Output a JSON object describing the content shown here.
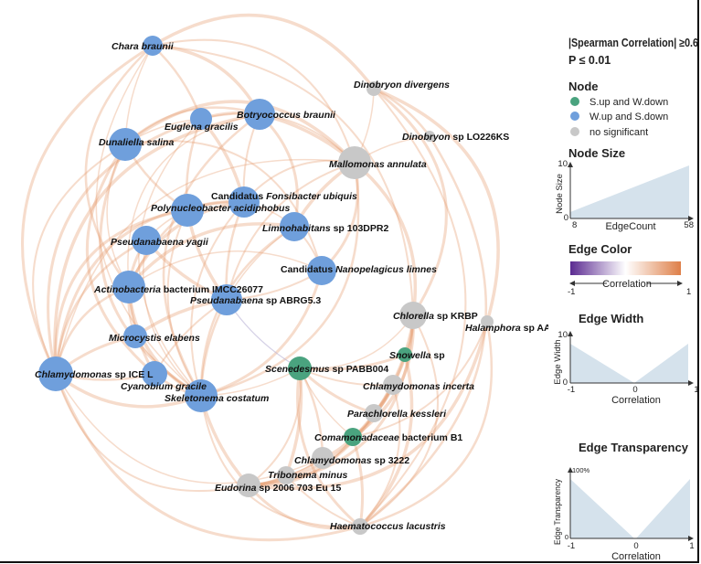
{
  "legend": {
    "threshold": "|Spearman Correlation| ≥0.6",
    "pvalue": "P ≤ 0.01",
    "node_title": "Node",
    "node_items": [
      {
        "label": "S.up and W.down",
        "color": "#4aa37f"
      },
      {
        "label": "W.up and S.down",
        "color": "#6f9fdc"
      },
      {
        "label": "no significant",
        "color": "#c8c8c8"
      }
    ],
    "node_size": {
      "title": "Node Size",
      "ylabel": "Node Size",
      "xlabel": "EdgeCount",
      "y_min": "0",
      "y_max": "10",
      "x_min": "8",
      "x_max": "58"
    },
    "edge_color": {
      "title": "Edge Color",
      "label": "Correlation",
      "min": "-1",
      "max": "1",
      "neg_color": "#5b2a91",
      "mid_color": "#ffffff",
      "pos_color": "#de7f48"
    },
    "edge_width": {
      "title": "Edge Width",
      "ylabel": "Edge Width",
      "xlabel": "Correlation",
      "y_min": "0",
      "y_max": "10",
      "x_min": "-1",
      "x_mid": "0",
      "x_max": "1"
    },
    "edge_transparency": {
      "title": "Edge Transparency",
      "ylabel": "Edge Transparency",
      "xlabel": "Correlation",
      "y_min": "0",
      "y_max": "100%",
      "x_min": "-1",
      "x_mid": "0",
      "x_max": "1"
    }
  },
  "nodes": [
    {
      "id": "chara",
      "group": "blue",
      "label": [
        {
          "t": "Chara braunii",
          "i": true
        }
      ]
    },
    {
      "id": "euglena",
      "group": "blue",
      "label": [
        {
          "t": "Euglena gracilis",
          "i": true
        }
      ]
    },
    {
      "id": "botryo",
      "group": "blue",
      "label": [
        {
          "t": "Botryococcus braunii",
          "i": true
        }
      ]
    },
    {
      "id": "dunaliella",
      "group": "blue",
      "label": [
        {
          "t": "Dunaliella salina",
          "i": true
        }
      ]
    },
    {
      "id": "dinodiv",
      "group": "gray",
      "label": [
        {
          "t": "Dinobryon divergens",
          "i": true
        }
      ]
    },
    {
      "id": "dinolo",
      "group": "gray",
      "label": [
        {
          "t": "Dinobryon",
          "i": true
        },
        {
          "t": " sp LO226KS",
          "i": false
        }
      ]
    },
    {
      "id": "mallomonas",
      "group": "gray",
      "label": [
        {
          "t": "Mallomonas annulata",
          "i": true
        }
      ]
    },
    {
      "id": "fonsibacter",
      "group": "blue",
      "label": [
        {
          "t": "Candidatus ",
          "i": false
        },
        {
          "t": "Fonsibacter ubiquis",
          "i": true
        }
      ]
    },
    {
      "id": "polynucleo",
      "group": "blue",
      "label": [
        {
          "t": "Polynucleobacter acidiphobus",
          "i": true
        }
      ]
    },
    {
      "id": "limno",
      "group": "blue",
      "label": [
        {
          "t": "Limnohabitans",
          "i": true
        },
        {
          "t": " sp 103DPR2",
          "i": false
        }
      ]
    },
    {
      "id": "pyagii",
      "group": "blue",
      "label": [
        {
          "t": "Pseudanabaena yagii",
          "i": true
        }
      ]
    },
    {
      "id": "nanopel",
      "group": "blue",
      "label": [
        {
          "t": "Candidatus ",
          "i": false
        },
        {
          "t": "Nanopelagicus limnes",
          "i": true
        }
      ]
    },
    {
      "id": "actino",
      "group": "blue",
      "label": [
        {
          "t": "Actinobacteria",
          "i": true
        },
        {
          "t": " bacterium IMCC26077",
          "i": false
        }
      ]
    },
    {
      "id": "pabrg",
      "group": "blue",
      "label": [
        {
          "t": "Pseudanabaena",
          "i": true
        },
        {
          "t": " sp ABRG5.3",
          "i": false
        }
      ]
    },
    {
      "id": "chlorella",
      "group": "gray",
      "label": [
        {
          "t": "Chlorella",
          "i": true
        },
        {
          "t": " sp KRBP",
          "i": false
        }
      ]
    },
    {
      "id": "halamphora",
      "group": "gray",
      "label": [
        {
          "t": "Halamphora",
          "i": true
        },
        {
          "t": " sp AAB",
          "i": false
        }
      ]
    },
    {
      "id": "microcystis",
      "group": "blue",
      "label": [
        {
          "t": "Microcystis elabens",
          "i": true
        }
      ]
    },
    {
      "id": "snowella",
      "group": "green",
      "label": [
        {
          "t": "Snowella",
          "i": true
        },
        {
          "t": " sp",
          "i": false
        }
      ]
    },
    {
      "id": "scenedesmus",
      "group": "green",
      "label": [
        {
          "t": "Scenedesmus",
          "i": true
        },
        {
          "t": " sp PABB004",
          "i": false
        }
      ]
    },
    {
      "id": "chlamice",
      "group": "blue",
      "label": [
        {
          "t": "Chlamydomonas",
          "i": true
        },
        {
          "t": " sp ICE L",
          "i": false
        }
      ]
    },
    {
      "id": "cyanobium",
      "group": "blue",
      "label": [
        {
          "t": "Cyanobium gracile",
          "i": true
        }
      ]
    },
    {
      "id": "chlaminc",
      "group": "gray",
      "label": [
        {
          "t": "Chlamydomonas incerta",
          "i": true
        }
      ]
    },
    {
      "id": "skeleto",
      "group": "blue",
      "label": [
        {
          "t": "Skeletonema costatum",
          "i": true
        }
      ]
    },
    {
      "id": "parachlo",
      "group": "gray",
      "label": [
        {
          "t": "Parachlorella kessleri",
          "i": true
        }
      ]
    },
    {
      "id": "comamo",
      "group": "green",
      "label": [
        {
          "t": "Comamonadaceae",
          "i": true
        },
        {
          "t": " bacterium B1",
          "i": false
        }
      ]
    },
    {
      "id": "chlam3222",
      "group": "gray",
      "label": [
        {
          "t": "Chlamydomonas",
          "i": true
        },
        {
          "t": " sp 3222",
          "i": false
        }
      ]
    },
    {
      "id": "tribonema",
      "group": "gray",
      "label": [
        {
          "t": "Tribonema minus",
          "i": true
        }
      ]
    },
    {
      "id": "eudorina",
      "group": "gray",
      "label": [
        {
          "t": "Eudorina",
          "i": true
        },
        {
          "t": " sp 2006 703 Eu 15",
          "i": false
        }
      ]
    },
    {
      "id": "haemato",
      "group": "gray",
      "label": [
        {
          "t": "Haematococcus lacustris",
          "i": true
        }
      ]
    }
  ],
  "edges": [
    [
      "chara",
      "dunaliella",
      1
    ],
    [
      "chara",
      "euglena",
      1
    ],
    [
      "chara",
      "botryo",
      1
    ],
    [
      "chara",
      "mallomonas",
      1
    ],
    [
      "chara",
      "chlamice",
      1
    ],
    [
      "chara",
      "skeleto",
      1
    ],
    [
      "chara",
      "actino",
      1
    ],
    [
      "chara",
      "dinodiv",
      1
    ],
    [
      "chara",
      "chlorella",
      1
    ],
    [
      "euglena",
      "botryo",
      1
    ],
    [
      "euglena",
      "dunaliella",
      1
    ],
    [
      "euglena",
      "polynucleo",
      1
    ],
    [
      "euglena",
      "fonsibacter",
      1
    ],
    [
      "euglena",
      "mallomonas",
      1
    ],
    [
      "euglena",
      "chlamice",
      1
    ],
    [
      "euglena",
      "skeleto",
      1
    ],
    [
      "botryo",
      "dunaliella",
      1
    ],
    [
      "botryo",
      "mallomonas",
      1
    ],
    [
      "botryo",
      "fonsibacter",
      1
    ],
    [
      "botryo",
      "limno",
      1
    ],
    [
      "botryo",
      "actino",
      1
    ],
    [
      "botryo",
      "skeleto",
      1
    ],
    [
      "botryo",
      "chlamice",
      1
    ],
    [
      "dunaliella",
      "chlamice",
      1
    ],
    [
      "dunaliella",
      "skeleto",
      1
    ],
    [
      "dunaliella",
      "actino",
      1
    ],
    [
      "dunaliella",
      "polynucleo",
      1
    ],
    [
      "dunaliella",
      "mallomonas",
      1
    ],
    [
      "dunaliella",
      "nanopel",
      1
    ],
    [
      "dunaliella",
      "cyanobium",
      1
    ],
    [
      "dinodiv",
      "mallomonas",
      1
    ],
    [
      "dinodiv",
      "dinolo",
      1
    ],
    [
      "dinodiv",
      "halamphora",
      1
    ],
    [
      "dinodiv",
      "haemato",
      1
    ],
    [
      "dinodiv",
      "chlorella",
      1
    ],
    [
      "dinolo",
      "mallomonas",
      1
    ],
    [
      "dinolo",
      "haemato",
      1
    ],
    [
      "mallomonas",
      "limno",
      1
    ],
    [
      "mallomonas",
      "fonsibacter",
      1
    ],
    [
      "mallomonas",
      "nanopel",
      1
    ],
    [
      "mallomonas",
      "chlamice",
      1
    ],
    [
      "mallomonas",
      "skeleto",
      1
    ],
    [
      "mallomonas",
      "chlorella",
      1
    ],
    [
      "mallomonas",
      "pabrg",
      1
    ],
    [
      "fonsibacter",
      "polynucleo",
      1
    ],
    [
      "fonsibacter",
      "limno",
      1
    ],
    [
      "fonsibacter",
      "pabrg",
      1
    ],
    [
      "fonsibacter",
      "actino",
      1
    ],
    [
      "fonsibacter",
      "skeleto",
      1
    ],
    [
      "fonsibacter",
      "chlamice",
      1
    ],
    [
      "polynucleo",
      "pyagii",
      1
    ],
    [
      "polynucleo",
      "actino",
      1
    ],
    [
      "polynucleo",
      "pabrg",
      1
    ],
    [
      "polynucleo",
      "skeleto",
      1
    ],
    [
      "polynucleo",
      "chlamice",
      1
    ],
    [
      "limno",
      "pabrg",
      1
    ],
    [
      "limno",
      "skeleto",
      1
    ],
    [
      "limno",
      "actino",
      1
    ],
    [
      "limno",
      "nanopel",
      1
    ],
    [
      "pyagii",
      "actino",
      1
    ],
    [
      "pyagii",
      "skeleto",
      1
    ],
    [
      "pyagii",
      "chlamice",
      1
    ],
    [
      "pyagii",
      "pabrg",
      1
    ],
    [
      "nanopel",
      "pabrg",
      1
    ],
    [
      "nanopel",
      "skeleto",
      1
    ],
    [
      "nanopel",
      "actino",
      1
    ],
    [
      "actino",
      "chlamice",
      1
    ],
    [
      "actino",
      "skeleto",
      1
    ],
    [
      "actino",
      "microcystis",
      1
    ],
    [
      "actino",
      "cyanobium",
      1
    ],
    [
      "pabrg",
      "scenedesmus",
      -1
    ],
    [
      "pabrg",
      "skeleto",
      1
    ],
    [
      "pabrg",
      "microcystis",
      1
    ],
    [
      "pabrg",
      "cyanobium",
      1
    ],
    [
      "microcystis",
      "chlamice",
      1
    ],
    [
      "microcystis",
      "skeleto",
      1
    ],
    [
      "chlamice",
      "cyanobium",
      1
    ],
    [
      "chlamice",
      "skeleto",
      1
    ],
    [
      "chlamice",
      "eudorina",
      1
    ],
    [
      "chlamice",
      "haemato",
      1
    ],
    [
      "chlamice",
      "chlam3222",
      1
    ],
    [
      "cyanobium",
      "skeleto",
      1
    ],
    [
      "skeleto",
      "eudorina",
      1
    ],
    [
      "skeleto",
      "haemato",
      1
    ],
    [
      "chlorella",
      "snowella",
      1
    ],
    [
      "chlorella",
      "scenedesmus",
      1
    ],
    [
      "chlorella",
      "chlaminc",
      1
    ],
    [
      "chlorella",
      "comamo",
      1
    ],
    [
      "chlorella",
      "haemato",
      1
    ],
    [
      "chlorella",
      "eudorina",
      1
    ],
    [
      "chlorella",
      "parachlo",
      1
    ],
    [
      "halamphora",
      "haemato",
      1
    ],
    [
      "halamphora",
      "eudorina",
      1
    ],
    [
      "halamphora",
      "comamo",
      1
    ],
    [
      "snowella",
      "scenedesmus",
      1
    ],
    [
      "snowella",
      "comamo",
      1
    ],
    [
      "snowella",
      "parachlo",
      1
    ],
    [
      "snowella",
      "haemato",
      1
    ],
    [
      "scenedesmus",
      "chlaminc",
      1
    ],
    [
      "scenedesmus",
      "parachlo",
      1
    ],
    [
      "scenedesmus",
      "comamo",
      1
    ],
    [
      "scenedesmus",
      "chlam3222",
      1
    ],
    [
      "scenedesmus",
      "tribonema",
      1
    ],
    [
      "scenedesmus",
      "eudorina",
      1
    ],
    [
      "scenedesmus",
      "haemato",
      1
    ],
    [
      "scenedesmus",
      "skeleto",
      1
    ],
    [
      "chlaminc",
      "comamo",
      1
    ],
    [
      "chlaminc",
      "parachlo",
      1
    ],
    [
      "chlaminc",
      "haemato",
      1
    ],
    [
      "chlaminc",
      "eudorina",
      1
    ],
    [
      "parachlo",
      "comamo",
      1
    ],
    [
      "parachlo",
      "eudorina",
      1
    ],
    [
      "comamo",
      "chlam3222",
      1
    ],
    [
      "comamo",
      "eudorina",
      1
    ],
    [
      "comamo",
      "haemato",
      1
    ],
    [
      "chlam3222",
      "eudorina",
      1
    ],
    [
      "chlam3222",
      "tribonema",
      1
    ],
    [
      "tribonema",
      "eudorina",
      1
    ],
    [
      "tribonema",
      "haemato",
      1
    ],
    [
      "eudorina",
      "haemato",
      1
    ]
  ]
}
